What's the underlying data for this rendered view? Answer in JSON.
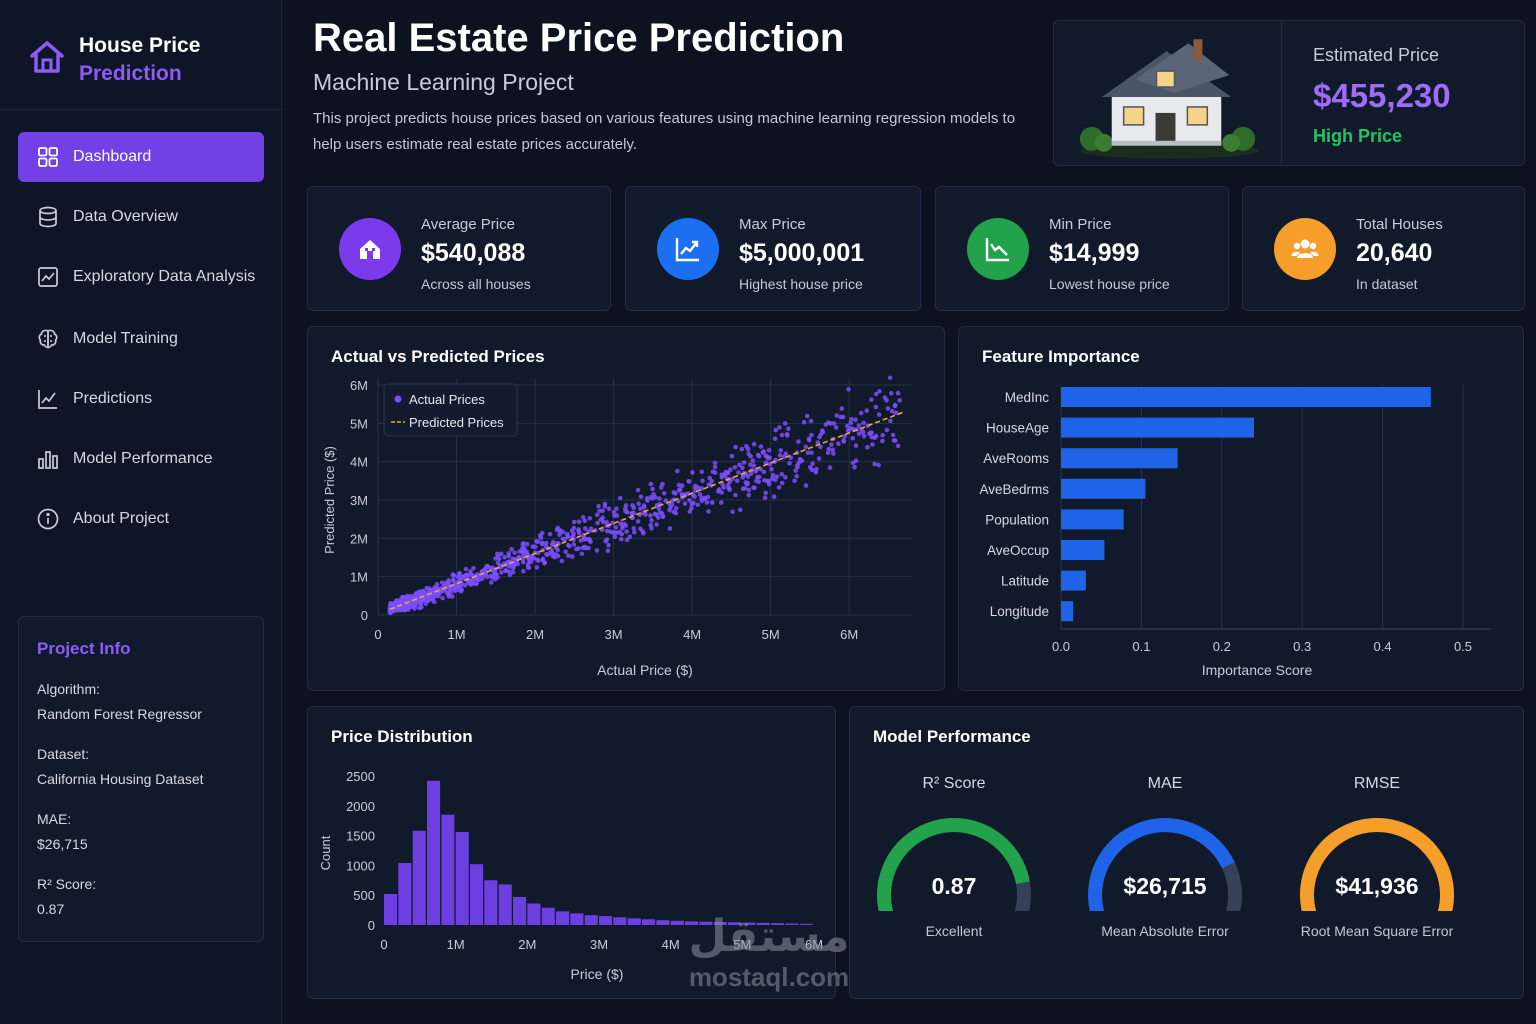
{
  "brand": {
    "line1": "House Price",
    "line2": "Prediction"
  },
  "nav": [
    {
      "label": "Dashboard",
      "icon": "grid-icon",
      "active": true
    },
    {
      "label": "Data Overview",
      "icon": "database-icon"
    },
    {
      "label": "Exploratory Data Analysis",
      "icon": "chart-line-box-icon"
    },
    {
      "label": "Model Training",
      "icon": "brain-icon"
    },
    {
      "label": "Predictions",
      "icon": "trend-icon"
    },
    {
      "label": "Model Performance",
      "icon": "bar-chart-icon"
    },
    {
      "label": "About Project",
      "icon": "info-icon"
    }
  ],
  "project_info": {
    "title": "Project Info",
    "algorithm_label": "Algorithm:",
    "algorithm": "Random Forest Regressor",
    "dataset_label": "Dataset:",
    "dataset": "California Housing Dataset",
    "mae_label": "MAE:",
    "mae": "$26,715",
    "r2_label": "R² Score:",
    "r2": "0.87"
  },
  "header": {
    "title": "Real Estate Price Prediction",
    "subtitle": "Machine Learning Project",
    "description": "This project predicts house prices based on various features using machine learning regression models to help users estimate real estate prices accurately."
  },
  "estimate": {
    "label": "Estimated Price",
    "value": "$455,230",
    "tag": "High Price",
    "tag_color": "#22c55e"
  },
  "stats": [
    {
      "label": "Average Price",
      "value": "$540,088",
      "sub": "Across all houses",
      "color": "#7c3aed",
      "icon": "house-icon"
    },
    {
      "label": "Max Price",
      "value": "$5,000,001",
      "sub": "Highest house price",
      "color": "#1d6ff2",
      "icon": "trend-up-icon"
    },
    {
      "label": "Min Price",
      "value": "$14,999",
      "sub": "Lowest house price",
      "color": "#22a24a",
      "icon": "trend-down-icon"
    },
    {
      "label": "Total Houses",
      "value": "20,640",
      "sub": "In dataset",
      "color": "#f59e2a",
      "icon": "users-icon"
    }
  ],
  "chart_data": [
    {
      "type": "scatter",
      "title": "Actual vs Predicted Prices",
      "xlabel": "Actual Price ($)",
      "ylabel": "Predicted Price ($)",
      "x_ticks": [
        "0",
        "1M",
        "2M",
        "3M",
        "4M",
        "5M",
        "6M"
      ],
      "y_ticks": [
        "0",
        "1M",
        "2M",
        "3M",
        "4M",
        "5M",
        "6M"
      ],
      "xlim": [
        0,
        6800000
      ],
      "ylim": [
        0,
        6000000
      ],
      "legend": [
        "Actual Prices",
        "Predicted Prices"
      ],
      "legend_position": "top-left",
      "point_color": "#7c4dff",
      "line_color": "#e8a93a",
      "trend_line": [
        [
          150000,
          150000
        ],
        [
          6700000,
          5300000
        ]
      ],
      "grid": true
    },
    {
      "type": "bar",
      "orientation": "horizontal",
      "title": "Feature Importance",
      "xlabel": "Importance Score",
      "categories": [
        "MedInc",
        "HouseAge",
        "AveRooms",
        "AveBedrms",
        "Population",
        "AveOccup",
        "Latitude",
        "Longitude"
      ],
      "values": [
        0.46,
        0.24,
        0.145,
        0.105,
        0.078,
        0.054,
        0.031,
        0.015
      ],
      "x_ticks": [
        "0.0",
        "0.1",
        "0.2",
        "0.3",
        "0.4",
        "0.5"
      ],
      "xlim": [
        0,
        0.5
      ],
      "color": "#1f63e8",
      "grid": true
    },
    {
      "type": "bar",
      "title": "Price Distribution",
      "xlabel": "Price ($)",
      "ylabel": "Count",
      "x_ticks": [
        "0",
        "1M",
        "2M",
        "3M",
        "4M",
        "5M",
        "6M"
      ],
      "y_ticks": [
        "0",
        "500",
        "1000",
        "1500",
        "2000",
        "2500"
      ],
      "xlim": [
        0,
        6000000
      ],
      "ylim": [
        0,
        2500
      ],
      "bin_width": 200000,
      "values": [
        520,
        1040,
        1580,
        2420,
        1850,
        1560,
        1020,
        750,
        680,
        470,
        360,
        290,
        230,
        195,
        165,
        150,
        130,
        110,
        95,
        80,
        70,
        60,
        55,
        50,
        45,
        40,
        35,
        30,
        25,
        20
      ],
      "color": "#6d3fe0"
    }
  ],
  "performance": {
    "title": "Model Performance",
    "gauges": [
      {
        "title": "R² Score",
        "value": "0.87",
        "sub": "Excellent",
        "fraction": 0.87,
        "color": "#22a24a"
      },
      {
        "title": "MAE",
        "value": "$26,715",
        "sub": "Mean Absolute Error",
        "fraction": 0.8,
        "color": "#1f63e8"
      },
      {
        "title": "RMSE",
        "value": "$41,936",
        "sub": "Root Mean Square Error",
        "fraction": 1.0,
        "color": "#f59e2a"
      }
    ]
  },
  "watermark": {
    "arabic": "مستقل",
    "latin": "mostaql.com"
  }
}
